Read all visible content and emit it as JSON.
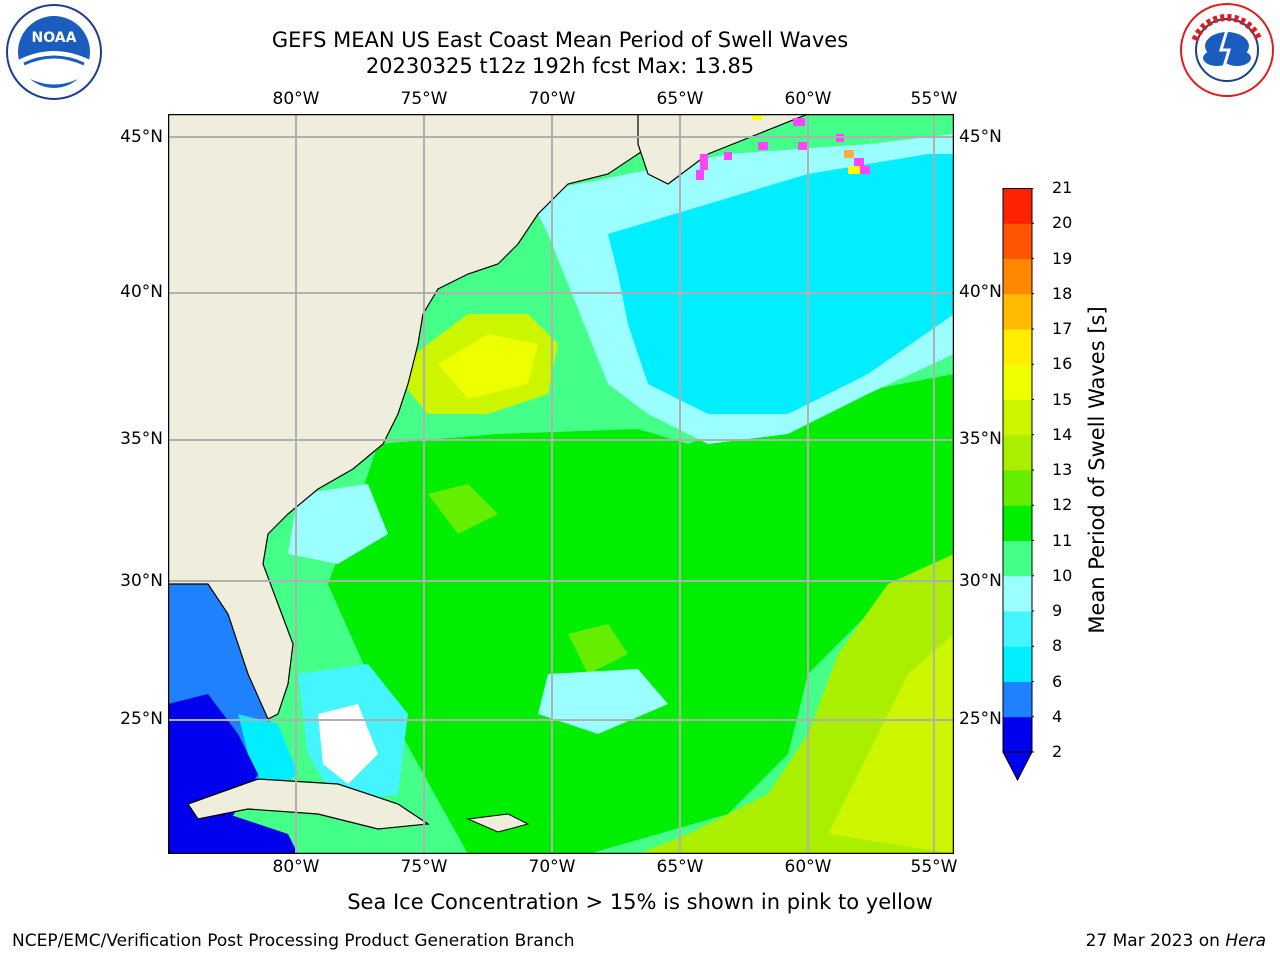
{
  "header": {
    "title_line1": "GEFS MEAN US East Coast Mean Period of Swell Waves",
    "title_line2": "20230325 t12z 192h fcst   Max: 13.85"
  },
  "logos": {
    "left": {
      "name": "NOAA",
      "ring_text": "NATIONAL OCEANIC AND ATMOSPHERIC ADMINISTRATION · U.S. DEPARTMENT OF COMMERCE"
    },
    "right": {
      "name": "NATIONAL WEATHER SERVICE"
    }
  },
  "map": {
    "lon_labels": [
      "80°W",
      "75°W",
      "70°W",
      "65°W",
      "60°W",
      "55°W"
    ],
    "lat_labels": [
      "45°N",
      "40°N",
      "35°N",
      "30°N",
      "25°N"
    ],
    "land_color": "#efeedc",
    "gridline_color": "#b0b0b0",
    "sea_ice_colors": [
      "#ff44ff",
      "#ffaa44",
      "#ffff00"
    ]
  },
  "colorbar": {
    "title": "Mean Period of Swell Waves [s]",
    "levels": [
      "2",
      "4",
      "6",
      "8",
      "9",
      "10",
      "11",
      "12",
      "13",
      "14",
      "15",
      "16",
      "17",
      "18",
      "19",
      "20",
      "21"
    ],
    "colors": [
      "#0000ee",
      "#1e82ff",
      "#00eeff",
      "#44f5ff",
      "#9cffff",
      "#44ff88",
      "#00ee00",
      "#66ee00",
      "#aaee00",
      "#ccf500",
      "#eeff00",
      "#ffee00",
      "#ffbb00",
      "#ff8800",
      "#ff5500",
      "#ff2200",
      "#ff0000"
    ],
    "extend_color": "#0000ee"
  },
  "caption": "Sea Ice Concentration > 15% is shown in pink to yellow",
  "footer": {
    "left": "NCEP/EMC/Verification Post Processing Product Generation Branch",
    "right_date": "27 Mar 2023 on",
    "right_host": "Hera"
  }
}
